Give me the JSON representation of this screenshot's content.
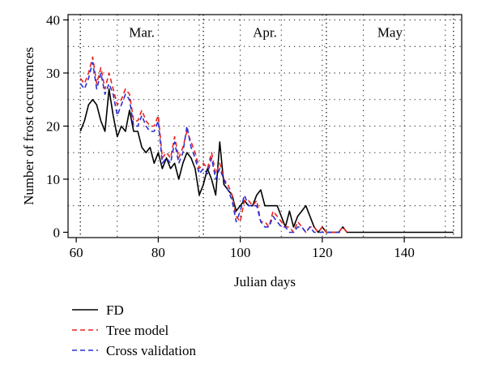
{
  "chart_data": {
    "type": "line",
    "xlabel": "Julian days",
    "ylabel": "Number of frost occurrences",
    "xlim": [
      58,
      154
    ],
    "ylim": [
      -1,
      41
    ],
    "x_ticks": [
      60,
      80,
      100,
      120,
      140
    ],
    "y_ticks": [
      0,
      10,
      20,
      30,
      40
    ],
    "grid": "dotted",
    "month_boundaries": [
      61,
      91,
      121,
      152
    ],
    "month_labels": [
      {
        "label": "Mar.",
        "x": 76
      },
      {
        "label": "Apr.",
        "x": 106
      },
      {
        "label": "May",
        "x": 136.5
      }
    ],
    "legend_position": "bottom-left",
    "series": [
      {
        "name": "FD",
        "color": "#000000",
        "dash": "solid",
        "points": [
          [
            61,
            19
          ],
          [
            62,
            21
          ],
          [
            63,
            24
          ],
          [
            64,
            25
          ],
          [
            65,
            24
          ],
          [
            66,
            21
          ],
          [
            67,
            19
          ],
          [
            68,
            27
          ],
          [
            69,
            22
          ],
          [
            70,
            18
          ],
          [
            71,
            20
          ],
          [
            72,
            19
          ],
          [
            73,
            23
          ],
          [
            74,
            19
          ],
          [
            75,
            19
          ],
          [
            76,
            16
          ],
          [
            77,
            15
          ],
          [
            78,
            16
          ],
          [
            79,
            13
          ],
          [
            80,
            15
          ],
          [
            81,
            12
          ],
          [
            82,
            14
          ],
          [
            83,
            12
          ],
          [
            84,
            13
          ],
          [
            85,
            10
          ],
          [
            86,
            13
          ],
          [
            87,
            15
          ],
          [
            88,
            14
          ],
          [
            89,
            12
          ],
          [
            90,
            7
          ],
          [
            91,
            9
          ],
          [
            92,
            12
          ],
          [
            93,
            10
          ],
          [
            94,
            7
          ],
          [
            95,
            17
          ],
          [
            96,
            9
          ],
          [
            97,
            8
          ],
          [
            98,
            7
          ],
          [
            99,
            4
          ],
          [
            100,
            5
          ],
          [
            101,
            6
          ],
          [
            102,
            5
          ],
          [
            103,
            5
          ],
          [
            104,
            7
          ],
          [
            105,
            8
          ],
          [
            106,
            5
          ],
          [
            107,
            5
          ],
          [
            108,
            5
          ],
          [
            109,
            5
          ],
          [
            110,
            3
          ],
          [
            111,
            1
          ],
          [
            112,
            4
          ],
          [
            113,
            1
          ],
          [
            114,
            3
          ],
          [
            115,
            4
          ],
          [
            116,
            5
          ],
          [
            117,
            3
          ],
          [
            118,
            1
          ],
          [
            119,
            0
          ],
          [
            120,
            1
          ],
          [
            121,
            0
          ],
          [
            122,
            0
          ],
          [
            123,
            0
          ],
          [
            124,
            0
          ],
          [
            125,
            1
          ],
          [
            126,
            0
          ],
          [
            127,
            0
          ],
          [
            128,
            0
          ],
          [
            130,
            0
          ],
          [
            140,
            0
          ],
          [
            152,
            0
          ]
        ]
      },
      {
        "name": "Tree model",
        "color": "#e8231f",
        "dash": "dashed",
        "points": [
          [
            61,
            29
          ],
          [
            62,
            28
          ],
          [
            63,
            30
          ],
          [
            64,
            33
          ],
          [
            65,
            28
          ],
          [
            66,
            31
          ],
          [
            67,
            27
          ],
          [
            68,
            30
          ],
          [
            69,
            27
          ],
          [
            70,
            24
          ],
          [
            71,
            25
          ],
          [
            72,
            27
          ],
          [
            73,
            26
          ],
          [
            74,
            21
          ],
          [
            75,
            21
          ],
          [
            76,
            23
          ],
          [
            77,
            21
          ],
          [
            78,
            20
          ],
          [
            79,
            20
          ],
          [
            80,
            22
          ],
          [
            81,
            14
          ],
          [
            82,
            15
          ],
          [
            83,
            14
          ],
          [
            84,
            18
          ],
          [
            85,
            14
          ],
          [
            86,
            16
          ],
          [
            87,
            19
          ],
          [
            88,
            17
          ],
          [
            89,
            15
          ],
          [
            90,
            12
          ],
          [
            91,
            13
          ],
          [
            92,
            12
          ],
          [
            93,
            15
          ],
          [
            94,
            11
          ],
          [
            95,
            13
          ],
          [
            96,
            10
          ],
          [
            97,
            9
          ],
          [
            98,
            7
          ],
          [
            99,
            3
          ],
          [
            100,
            2
          ],
          [
            101,
            6
          ],
          [
            102,
            6
          ],
          [
            103,
            5
          ],
          [
            104,
            6
          ],
          [
            105,
            2
          ],
          [
            106,
            2
          ],
          [
            107,
            1
          ],
          [
            108,
            4
          ],
          [
            109,
            3
          ],
          [
            110,
            2
          ],
          [
            111,
            1
          ],
          [
            112,
            1
          ],
          [
            113,
            0
          ],
          [
            114,
            2
          ],
          [
            115,
            1
          ],
          [
            116,
            0
          ],
          [
            117,
            1
          ],
          [
            118,
            1
          ],
          [
            119,
            0
          ],
          [
            120,
            1
          ],
          [
            121,
            0
          ],
          [
            122,
            0
          ],
          [
            123,
            0
          ],
          [
            124,
            0
          ],
          [
            125,
            1
          ],
          [
            126,
            0
          ]
        ]
      },
      {
        "name": "Cross validation",
        "color": "#2a2fd4",
        "dash": "dashed",
        "points": [
          [
            61,
            28
          ],
          [
            62,
            27
          ],
          [
            63,
            29
          ],
          [
            64,
            32
          ],
          [
            65,
            27
          ],
          [
            66,
            30
          ],
          [
            67,
            26
          ],
          [
            68,
            28
          ],
          [
            69,
            26
          ],
          [
            70,
            22
          ],
          [
            71,
            24
          ],
          [
            72,
            26
          ],
          [
            73,
            25
          ],
          [
            74,
            20
          ],
          [
            75,
            20
          ],
          [
            76,
            22
          ],
          [
            77,
            20
          ],
          [
            78,
            19
          ],
          [
            79,
            19
          ],
          [
            80,
            21
          ],
          [
            81,
            13
          ],
          [
            82,
            14
          ],
          [
            83,
            13
          ],
          [
            84,
            17
          ],
          [
            85,
            13
          ],
          [
            86,
            15
          ],
          [
            87,
            20
          ],
          [
            88,
            16
          ],
          [
            89,
            14
          ],
          [
            90,
            11
          ],
          [
            91,
            12
          ],
          [
            92,
            11
          ],
          [
            93,
            14
          ],
          [
            94,
            10
          ],
          [
            95,
            12
          ],
          [
            96,
            10
          ],
          [
            97,
            8
          ],
          [
            98,
            6
          ],
          [
            99,
            2
          ],
          [
            100,
            4
          ],
          [
            101,
            7
          ],
          [
            102,
            5
          ],
          [
            103,
            5
          ],
          [
            104,
            5
          ],
          [
            105,
            2
          ],
          [
            106,
            1
          ],
          [
            107,
            1
          ],
          [
            108,
            3
          ],
          [
            109,
            2
          ],
          [
            110,
            1
          ],
          [
            111,
            1
          ],
          [
            112,
            0
          ],
          [
            113,
            0
          ],
          [
            114,
            1
          ],
          [
            115,
            1
          ],
          [
            116,
            0
          ],
          [
            117,
            1
          ],
          [
            118,
            0
          ],
          [
            119,
            0
          ],
          [
            120,
            0
          ],
          [
            121,
            0
          ],
          [
            122,
            0
          ],
          [
            124,
            0
          ],
          [
            125,
            0
          ]
        ]
      }
    ]
  }
}
